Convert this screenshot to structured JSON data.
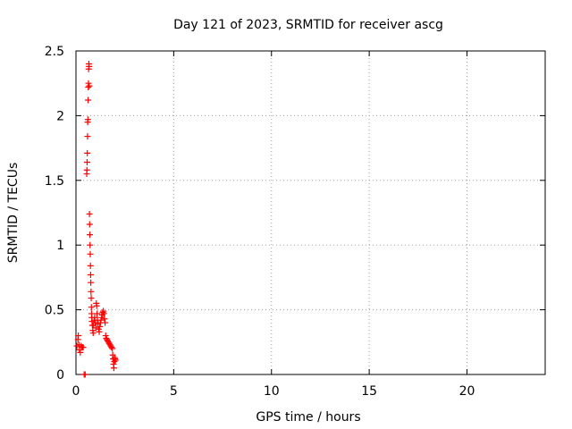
{
  "chart_data": {
    "type": "scatter",
    "title": "Day 121 of 2023, SRMTID for receiver ascg",
    "xlabel": "GPS time / hours",
    "ylabel": "SRMTID / TECUs",
    "xlim": [
      0,
      24
    ],
    "ylim": [
      0,
      2.5
    ],
    "xticks": [
      0,
      5,
      10,
      15,
      20
    ],
    "xtick_labels": [
      "0",
      "5",
      "10",
      "15",
      "20"
    ],
    "yticks": [
      0,
      0.5,
      1,
      1.5,
      2,
      2.5
    ],
    "ytick_labels": [
      "0",
      "0.5",
      "1",
      "1.5",
      "2",
      "2.5"
    ],
    "grid": true,
    "series": [
      {
        "name": "SRMTID",
        "color": "#ff0000",
        "marker": "plus",
        "points": [
          [
            0.05,
            0.22
          ],
          [
            0.1,
            0.27
          ],
          [
            0.12,
            0.3
          ],
          [
            0.15,
            0.23
          ],
          [
            0.18,
            0.19
          ],
          [
            0.22,
            0.17
          ],
          [
            0.27,
            0.22
          ],
          [
            0.32,
            0.21
          ],
          [
            0.37,
            0.21
          ],
          [
            0.42,
            0.0
          ],
          [
            0.47,
            0.0
          ],
          [
            0.55,
            1.55
          ],
          [
            0.56,
            1.58
          ],
          [
            0.57,
            1.64
          ],
          [
            0.58,
            1.71
          ],
          [
            0.59,
            1.84
          ],
          [
            0.6,
            1.95
          ],
          [
            0.61,
            1.97
          ],
          [
            0.62,
            2.12
          ],
          [
            0.63,
            2.22
          ],
          [
            0.64,
            2.25
          ],
          [
            0.65,
            2.36
          ],
          [
            0.66,
            2.4
          ],
          [
            0.67,
            2.38
          ],
          [
            0.68,
            2.23
          ],
          [
            0.69,
            1.24
          ],
          [
            0.7,
            1.16
          ],
          [
            0.71,
            1.08
          ],
          [
            0.72,
            1.0
          ],
          [
            0.73,
            0.93
          ],
          [
            0.74,
            0.84
          ],
          [
            0.75,
            0.77
          ],
          [
            0.76,
            0.71
          ],
          [
            0.77,
            0.64
          ],
          [
            0.78,
            0.59
          ],
          [
            0.79,
            0.52
          ],
          [
            0.8,
            0.47
          ],
          [
            0.81,
            0.44
          ],
          [
            0.82,
            0.41
          ],
          [
            0.84,
            0.38
          ],
          [
            0.86,
            0.34
          ],
          [
            0.88,
            0.32
          ],
          [
            0.9,
            0.38
          ],
          [
            0.93,
            0.42
          ],
          [
            0.96,
            0.44
          ],
          [
            0.99,
            0.4
          ],
          [
            1.02,
            0.36
          ],
          [
            1.04,
            0.55
          ],
          [
            1.06,
            0.53
          ],
          [
            1.08,
            0.47
          ],
          [
            1.1,
            0.42
          ],
          [
            1.13,
            0.39
          ],
          [
            1.16,
            0.35
          ],
          [
            1.19,
            0.33
          ],
          [
            1.22,
            0.37
          ],
          [
            1.25,
            0.4
          ],
          [
            1.28,
            0.42
          ],
          [
            1.31,
            0.44
          ],
          [
            1.34,
            0.46
          ],
          [
            1.37,
            0.48
          ],
          [
            1.4,
            0.49
          ],
          [
            1.43,
            0.47
          ],
          [
            1.46,
            0.43
          ],
          [
            1.49,
            0.4
          ],
          [
            1.52,
            0.3
          ],
          [
            1.55,
            0.28
          ],
          [
            1.58,
            0.27
          ],
          [
            1.62,
            0.26
          ],
          [
            1.66,
            0.25
          ],
          [
            1.7,
            0.24
          ],
          [
            1.74,
            0.23
          ],
          [
            1.78,
            0.22
          ],
          [
            1.82,
            0.21
          ],
          [
            1.86,
            0.2
          ],
          [
            1.88,
            0.15
          ],
          [
            1.9,
            0.12
          ],
          [
            1.92,
            0.08
          ],
          [
            1.94,
            0.05
          ],
          [
            1.96,
            0.1
          ],
          [
            1.98,
            0.13
          ],
          [
            2.0,
            0.12
          ],
          [
            2.02,
            0.11
          ]
        ]
      }
    ]
  }
}
